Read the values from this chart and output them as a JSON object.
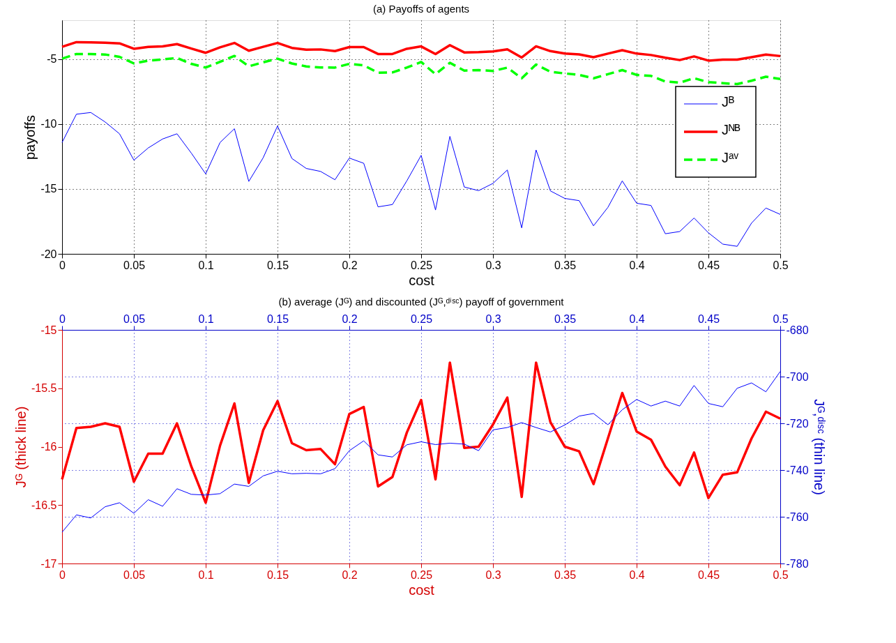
{
  "chart_data": [
    {
      "type": "line",
      "title": "(a) Payoffs of agents",
      "xlabel": "cost",
      "ylabel": "payoffs",
      "x": [
        0,
        0.01,
        0.02,
        0.03,
        0.04,
        0.05,
        0.06,
        0.07,
        0.08,
        0.09,
        0.1,
        0.11,
        0.12,
        0.13,
        0.14,
        0.15,
        0.16,
        0.17,
        0.18,
        0.19,
        0.2,
        0.21,
        0.22,
        0.23,
        0.24,
        0.25,
        0.26,
        0.27,
        0.28,
        0.29,
        0.3,
        0.31,
        0.32,
        0.33,
        0.34,
        0.35,
        0.36,
        0.37,
        0.38,
        0.39,
        0.4,
        0.41,
        0.42,
        0.43,
        0.44,
        0.45,
        0.46,
        0.47,
        0.48,
        0.49,
        0.5
      ],
      "series": [
        {
          "name": "Jᴮ",
          "color": "#0000ff",
          "line_style": "solid",
          "values": [
            -11.42,
            -9.24,
            -9.11,
            -9.84,
            -10.75,
            -12.78,
            -11.84,
            -11.15,
            -10.75,
            -12.24,
            -13.84,
            -11.42,
            -10.36,
            -14.42,
            -12.6,
            -10.15,
            -12.65,
            -13.42,
            -13.65,
            -14.29,
            -12.62,
            -13.02,
            -16.38,
            -16.2,
            -14.38,
            -12.41,
            -16.62,
            -10.95,
            -14.85,
            -15.13,
            -14.57,
            -13.54,
            -18.0,
            -12.0,
            -15.15,
            -15.73,
            -15.9,
            -17.84,
            -16.42,
            -14.38,
            -16.1,
            -16.27,
            -18.45,
            -18.28,
            -17.24,
            -18.38,
            -19.25,
            -19.42,
            -17.63,
            -16.47,
            -16.96
          ]
        },
        {
          "name": "Jᴺᴮ",
          "color": "#ff0000",
          "line_style": "solid",
          "values": [
            -4.05,
            -3.69,
            -3.71,
            -3.73,
            -3.78,
            -4.2,
            -4.05,
            -4.02,
            -3.84,
            -4.18,
            -4.51,
            -4.09,
            -3.75,
            -4.35,
            -4.05,
            -3.75,
            -4.13,
            -4.27,
            -4.25,
            -4.38,
            -4.07,
            -4.07,
            -4.6,
            -4.6,
            -4.2,
            -4.02,
            -4.61,
            -3.92,
            -4.48,
            -4.46,
            -4.4,
            -4.24,
            -4.87,
            -4.01,
            -4.38,
            -4.57,
            -4.63,
            -4.85,
            -4.57,
            -4.31,
            -4.57,
            -4.68,
            -4.89,
            -5.07,
            -4.79,
            -5.11,
            -5.04,
            -5.04,
            -4.85,
            -4.65,
            -4.76
          ]
        },
        {
          "name": "Jᵃᵛ",
          "color": "#00ff00",
          "line_style": "dashed",
          "values": [
            -4.96,
            -4.6,
            -4.6,
            -4.64,
            -4.82,
            -5.33,
            -5.11,
            -5.02,
            -4.91,
            -5.36,
            -5.65,
            -5.2,
            -4.75,
            -5.55,
            -5.24,
            -4.96,
            -5.33,
            -5.56,
            -5.64,
            -5.65,
            -5.36,
            -5.47,
            -6.05,
            -6.02,
            -5.65,
            -5.22,
            -6.16,
            -5.28,
            -5.88,
            -5.84,
            -5.91,
            -5.65,
            -6.47,
            -5.41,
            -5.97,
            -6.1,
            -6.21,
            -6.47,
            -6.16,
            -5.84,
            -6.21,
            -6.29,
            -6.72,
            -6.81,
            -6.47,
            -6.77,
            -6.85,
            -6.92,
            -6.66,
            -6.35,
            -6.53
          ]
        }
      ],
      "xlim": [
        0,
        0.5
      ],
      "xticks": [
        0,
        0.05,
        0.1,
        0.15,
        0.2,
        0.25,
        0.3,
        0.35,
        0.4,
        0.45,
        0.5
      ],
      "ylim": [
        -20,
        -2
      ],
      "yticks": [
        -20,
        -15,
        -10,
        -5
      ],
      "grid": true,
      "legend": "right"
    },
    {
      "type": "line",
      "title": "(b) average (Jᴳ) and discounted (Jᴳ,ᵈⁱˢᶜ) payoff of government",
      "xlabel": "cost",
      "ylabel": "Jᴳ (thick line)",
      "y2label": "Jᴳ,ᵈⁱˢᶜ (thin line)",
      "x": [
        0,
        0.01,
        0.02,
        0.03,
        0.04,
        0.05,
        0.06,
        0.07,
        0.08,
        0.09,
        0.1,
        0.11,
        0.12,
        0.13,
        0.14,
        0.15,
        0.16,
        0.17,
        0.18,
        0.19,
        0.2,
        0.21,
        0.22,
        0.23,
        0.24,
        0.25,
        0.26,
        0.27,
        0.28,
        0.29,
        0.3,
        0.31,
        0.32,
        0.33,
        0.34,
        0.35,
        0.36,
        0.37,
        0.38,
        0.39,
        0.4,
        0.41,
        0.42,
        0.43,
        0.44,
        0.45,
        0.46,
        0.47,
        0.48,
        0.49,
        0.5
      ],
      "series": [
        {
          "color": "#ff0000",
          "line_style": "solid",
          "values": [
            -16.28,
            -15.84,
            -15.83,
            -15.8,
            -15.83,
            -16.3,
            -16.06,
            -16.06,
            -15.8,
            -16.17,
            -16.48,
            -15.99,
            -15.63,
            -16.31,
            -15.86,
            -15.61,
            -15.97,
            -16.03,
            -16.02,
            -16.15,
            -15.72,
            -15.66,
            -16.34,
            -16.26,
            -15.88,
            -15.6,
            -16.28,
            -15.28,
            -16.01,
            -16.0,
            -15.81,
            -15.58,
            -16.43,
            -15.28,
            -15.79,
            -16.0,
            -16.04,
            -16.32,
            -15.93,
            -15.54,
            -15.87,
            -15.94,
            -16.17,
            -16.33,
            -16.05,
            -16.44,
            -16.24,
            -16.22,
            -15.93,
            -15.7,
            -15.76
          ]
        },
        {
          "color": "#0000ff",
          "line_style": "solid",
          "axis": "y2",
          "values": [
            -766.6,
            -759.2,
            -760.5,
            -755.7,
            -754.0,
            -758.5,
            -752.7,
            -755.5,
            -748.0,
            -750.4,
            -750.7,
            -750.1,
            -746.0,
            -747.0,
            -742.5,
            -740.5,
            -741.6,
            -741.4,
            -741.6,
            -739.4,
            -731.7,
            -727.5,
            -733.5,
            -734.4,
            -729.2,
            -727.9,
            -729.1,
            -728.5,
            -728.9,
            -731.7,
            -722.8,
            -721.8,
            -719.7,
            -721.8,
            -723.7,
            -720.7,
            -716.9,
            -715.8,
            -720.6,
            -714.2,
            -709.8,
            -712.6,
            -710.5,
            -712.6,
            -703.8,
            -711.5,
            -712.9,
            -705.0,
            -702.7,
            -706.5,
            -697.8
          ]
        }
      ],
      "xlim": [
        0,
        0.5
      ],
      "xticks": [
        0,
        0.05,
        0.1,
        0.15,
        0.2,
        0.25,
        0.3,
        0.35,
        0.4,
        0.45,
        0.5
      ],
      "x2lim": [
        0,
        0.5
      ],
      "x2ticks": [
        0,
        0.05,
        0.1,
        0.15,
        0.2,
        0.25,
        0.3,
        0.35,
        0.4,
        0.45,
        0.5
      ],
      "ylim": [
        -17,
        -15
      ],
      "yticks": [
        -17,
        -16.5,
        -16,
        -15.5,
        -15
      ],
      "y2lim": [
        -780,
        -680
      ],
      "y2ticks": [
        -780,
        -760,
        -740,
        -720,
        -700,
        -680
      ],
      "grid": true
    }
  ]
}
